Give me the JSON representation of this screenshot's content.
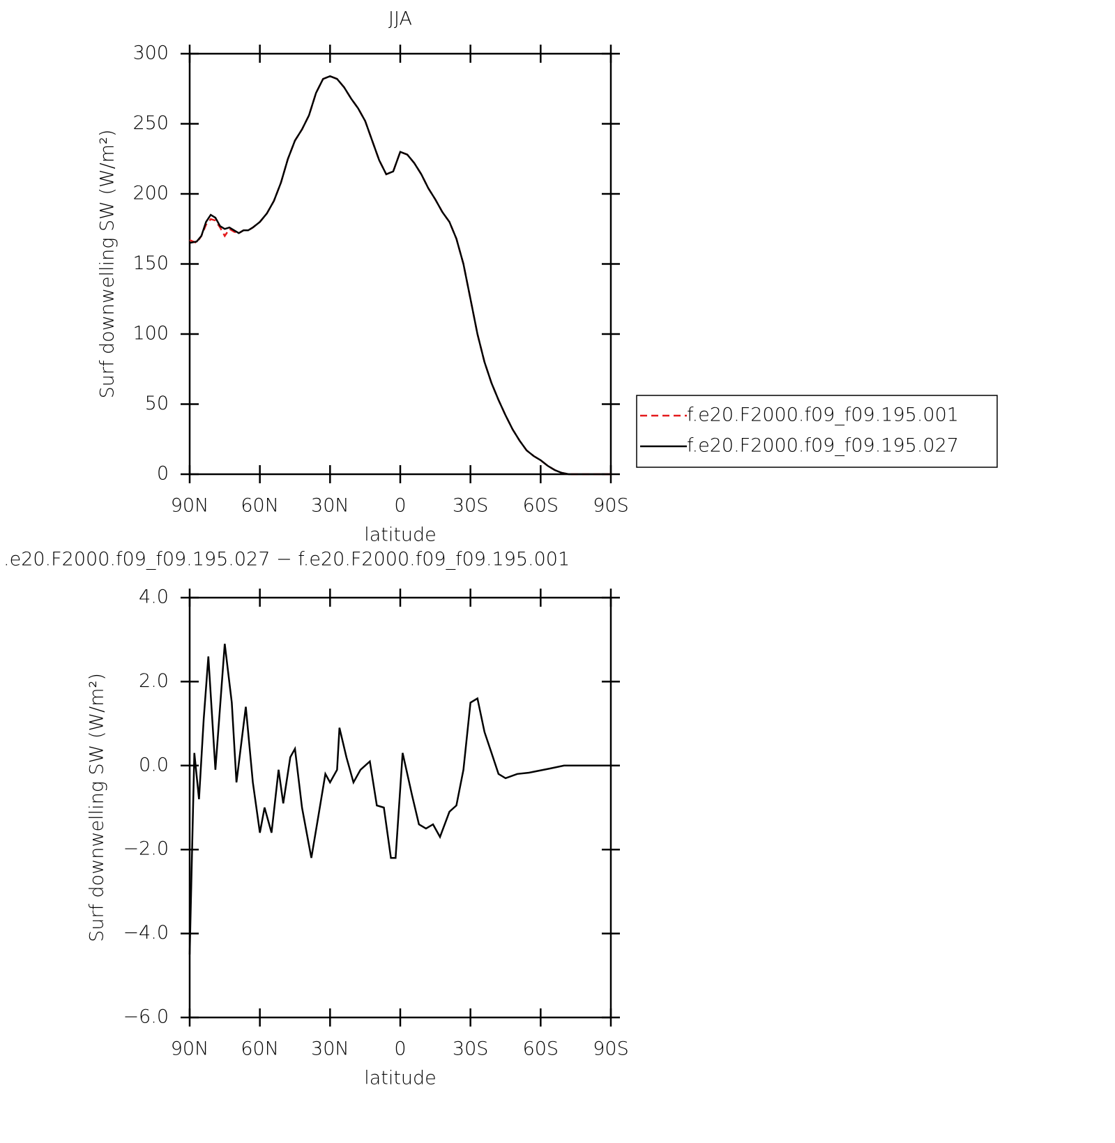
{
  "chart_data": [
    {
      "type": "line",
      "title": "JJA",
      "xlabel": "latitude",
      "ylabel": "Surf downwelling SW (W/m²)",
      "xlim": [
        90,
        -90
      ],
      "xticks": [
        {
          "value": 90,
          "label": "90N"
        },
        {
          "value": 60,
          "label": "60N"
        },
        {
          "value": 30,
          "label": "30N"
        },
        0,
        {
          "value": -30,
          "label": "30S"
        },
        {
          "value": -60,
          "label": "60S"
        },
        {
          "value": -90,
          "label": "90S"
        }
      ],
      "ylim": [
        0,
        300
      ],
      "yticks": [
        0,
        50,
        100,
        150,
        200,
        250,
        300
      ],
      "x": [
        90,
        87,
        85,
        83,
        81,
        79,
        77,
        75,
        73,
        71,
        69,
        67,
        65,
        63,
        60,
        57,
        54,
        51,
        48,
        45,
        42,
        39,
        36,
        33,
        30,
        27,
        24,
        21,
        18,
        15,
        12,
        9,
        6,
        3,
        0,
        -3,
        -6,
        -9,
        -12,
        -15,
        -18,
        -21,
        -24,
        -27,
        -30,
        -33,
        -36,
        -39,
        -42,
        -45,
        -48,
        -51,
        -54,
        -57,
        -60,
        -63,
        -66,
        -69,
        -72,
        -75,
        -78,
        -81,
        -84,
        -87,
        -90
      ],
      "legend": "right",
      "series": [
        {
          "name": "f.e20.F2000.f09_f09.195.001",
          "color": "#e41a1c",
          "style": "dashed",
          "values": [
            167,
            165,
            170,
            178,
            182,
            181,
            176,
            170,
            175,
            173,
            172,
            174,
            174,
            176,
            180,
            186,
            195,
            208,
            225,
            238,
            246,
            256,
            272,
            282,
            284,
            282,
            276,
            268,
            261,
            252,
            238,
            224,
            214,
            216,
            230,
            228,
            222,
            214,
            204,
            196,
            187,
            180,
            168,
            150,
            125,
            100,
            80,
            65,
            53,
            42,
            32,
            24,
            17,
            13,
            10,
            6,
            3,
            1,
            0,
            0,
            0,
            0,
            0,
            0,
            0
          ]
        },
        {
          "name": "f.e20.F2000.f09_f09.195.027",
          "color": "#000000",
          "style": "solid",
          "values": [
            165,
            166,
            170,
            180,
            185,
            183,
            177,
            175,
            176,
            174,
            172,
            174,
            174,
            176,
            180,
            186,
            195,
            208,
            225,
            238,
            246,
            256,
            272,
            282,
            284,
            282,
            276,
            268,
            261,
            252,
            238,
            224,
            214,
            216,
            230,
            228,
            222,
            214,
            204,
            196,
            187,
            180,
            168,
            150,
            125,
            100,
            80,
            65,
            53,
            42,
            32,
            24,
            17,
            13,
            10,
            6,
            3,
            1,
            0,
            0,
            0,
            0,
            0,
            0,
            0
          ]
        }
      ]
    },
    {
      "type": "line",
      "title": ".e20.F2000.f09_f09.195.027 − f.e20.F2000.f09_f09.195.001",
      "xlabel": "latitude",
      "ylabel": "Surf downwelling SW (W/m²)",
      "xlim": [
        90,
        -90
      ],
      "xticks": [
        {
          "value": 90,
          "label": "90N"
        },
        {
          "value": 60,
          "label": "60N"
        },
        {
          "value": 30,
          "label": "30N"
        },
        0,
        {
          "value": -30,
          "label": "30S"
        },
        {
          "value": -60,
          "label": "60S"
        },
        {
          "value": -90,
          "label": "90S"
        }
      ],
      "ylim": [
        -6,
        4
      ],
      "yticks": [
        {
          "value": -6,
          "label": "−6.0"
        },
        {
          "value": -4,
          "label": "−4.0"
        },
        {
          "value": -2,
          "label": "−2.0"
        },
        {
          "value": 0,
          "label": "0.0"
        },
        {
          "value": 2,
          "label": "2.0"
        },
        {
          "value": 4,
          "label": "4.0"
        }
      ],
      "color": "#000000",
      "x": [
        90,
        88,
        86,
        84,
        82,
        79,
        75,
        72,
        70,
        66,
        63,
        60,
        58,
        55,
        52,
        50,
        47,
        45,
        42,
        40,
        38,
        35,
        32,
        30,
        27,
        26,
        23,
        20,
        17,
        13,
        10,
        7,
        4,
        2,
        -1,
        -5,
        -8,
        -11,
        -14,
        -17,
        -21,
        -24,
        -27,
        -30,
        -33,
        -36,
        -39,
        -42,
        -45,
        -50,
        -55,
        -64,
        -70,
        -79,
        -90
      ],
      "values": [
        -4.5,
        0.3,
        -0.8,
        1.1,
        2.6,
        -0.1,
        2.9,
        1.5,
        -0.4,
        1.4,
        -0.4,
        -1.6,
        -1.0,
        -1.6,
        -0.1,
        -0.9,
        0.2,
        0.4,
        -1.0,
        -1.6,
        -2.2,
        -1.2,
        -0.2,
        -0.4,
        -0.1,
        0.9,
        0.2,
        -0.4,
        -0.1,
        0.1,
        -0.95,
        -1.0,
        -2.2,
        -2.2,
        0.3,
        -0.7,
        -1.4,
        -1.5,
        -1.4,
        -1.7,
        -1.1,
        -0.95,
        -0.1,
        1.5,
        1.6,
        0.8,
        0.3,
        -0.2,
        -0.3,
        -0.2,
        -0.17,
        -0.07,
        0,
        0,
        0
      ]
    }
  ]
}
